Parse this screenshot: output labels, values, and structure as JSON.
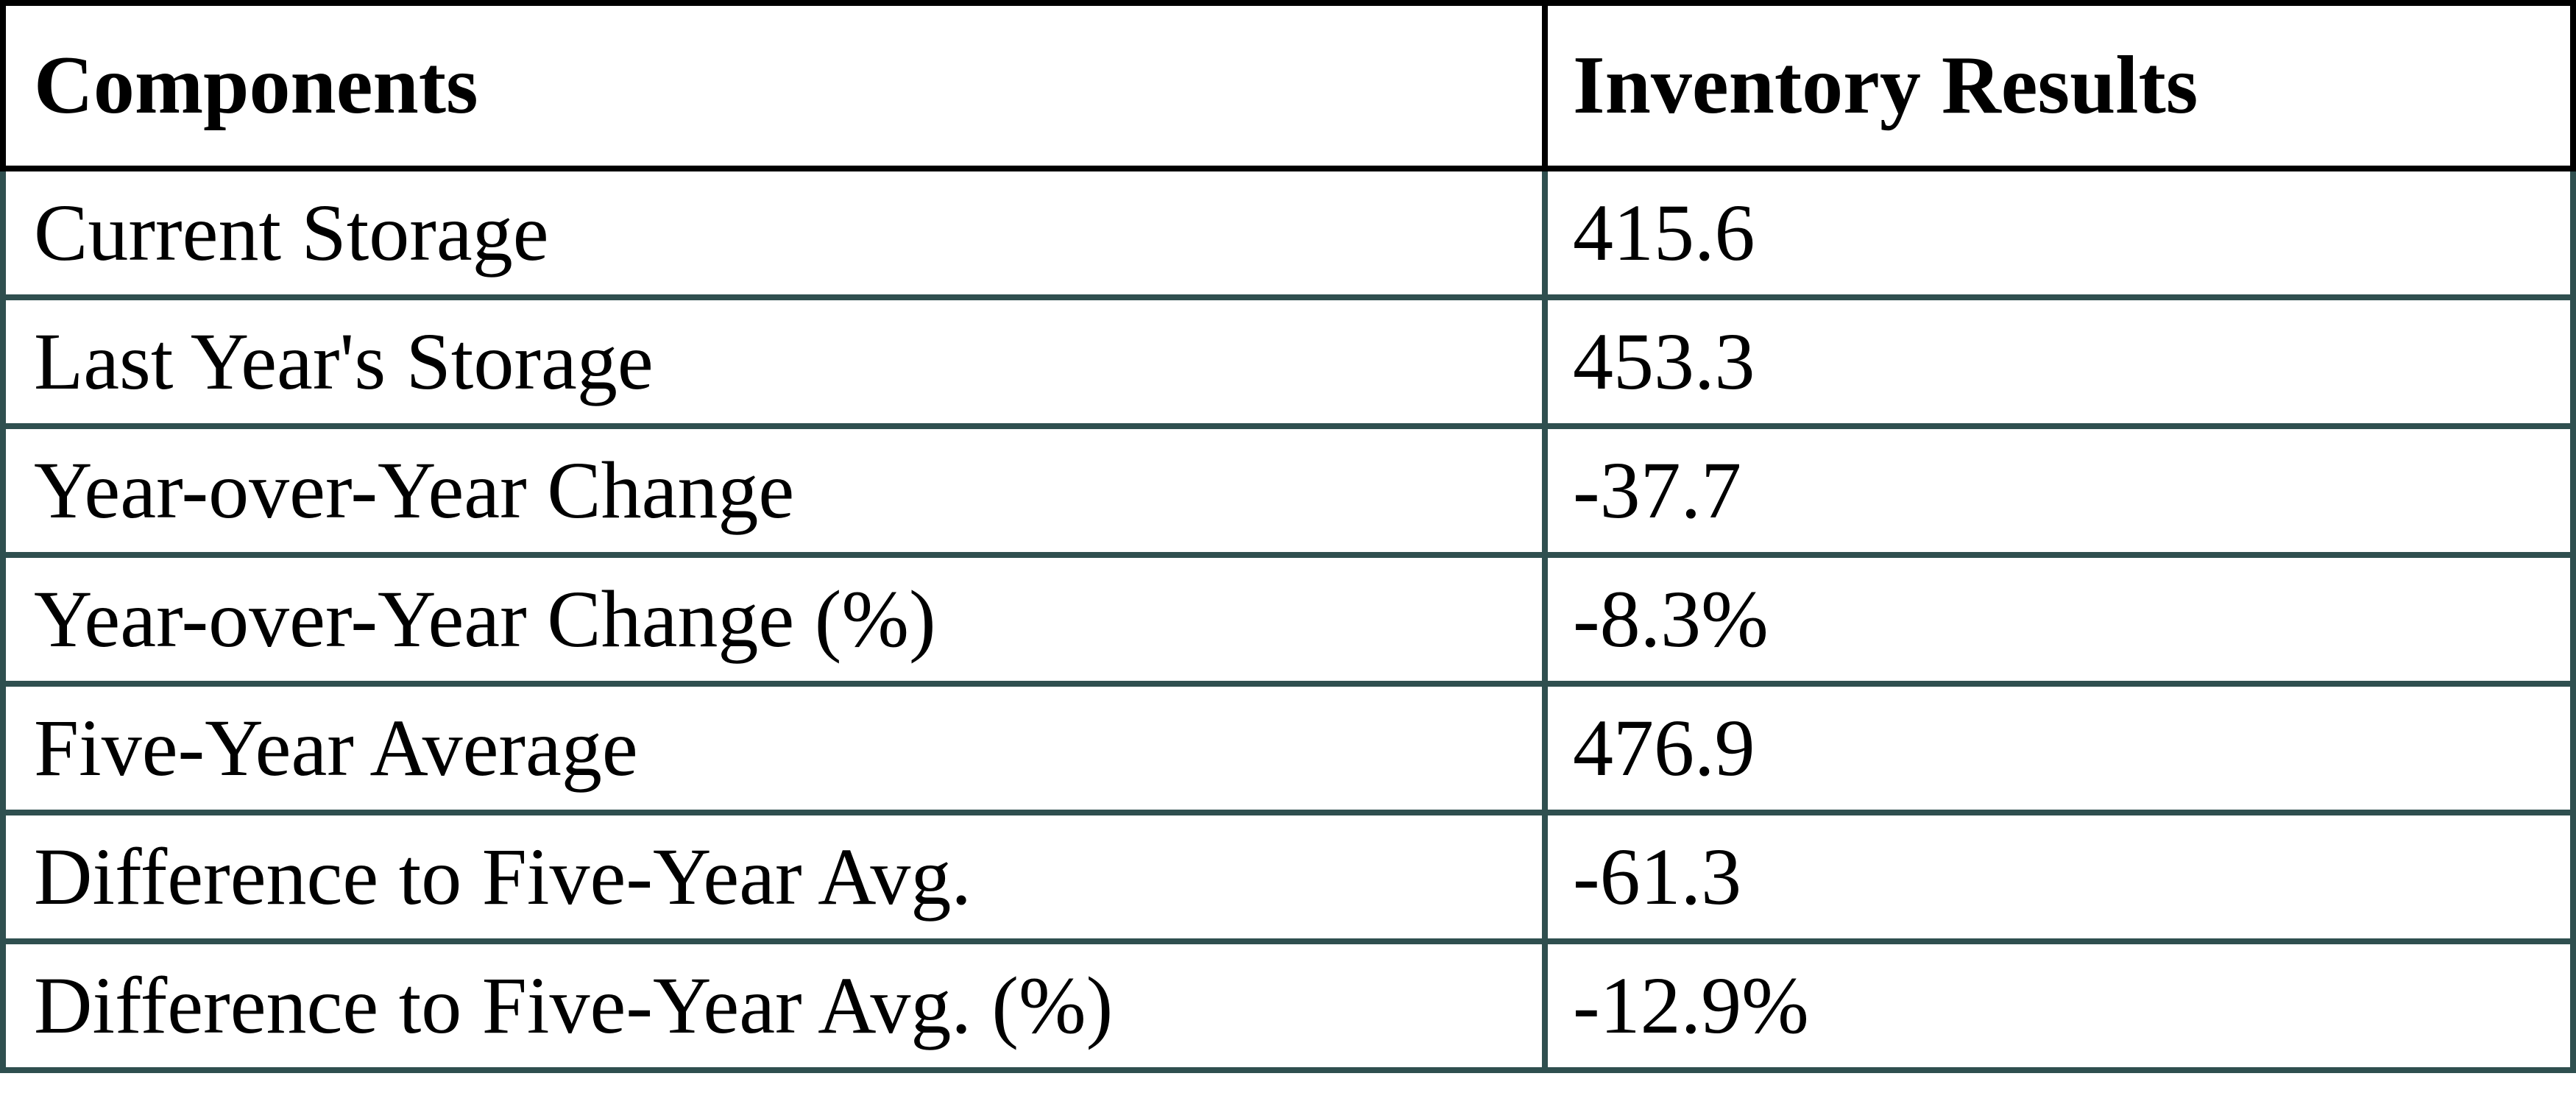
{
  "chart_data": {
    "type": "table",
    "columns": [
      "Components",
      "Inventory Results"
    ],
    "rows": [
      [
        "Current Storage",
        "415.6"
      ],
      [
        "Last Year's Storage",
        "453.3"
      ],
      [
        "Year-over-Year Change",
        "-37.7"
      ],
      [
        "Year-over-Year Change (%)",
        "-8.3%"
      ],
      [
        "Five-Year Average",
        "476.9"
      ],
      [
        "Difference to Five-Year Avg.",
        "-61.3"
      ],
      [
        "Difference to Five-Year Avg. (%)",
        "-12.9%"
      ]
    ],
    "layout": {
      "legend": "none",
      "grid": "full-borders",
      "header_row": true
    }
  },
  "colors": {
    "text": "#000000",
    "header_border": "#000000",
    "body_border": "#2F4F4F",
    "background": "#FFFFFF"
  }
}
